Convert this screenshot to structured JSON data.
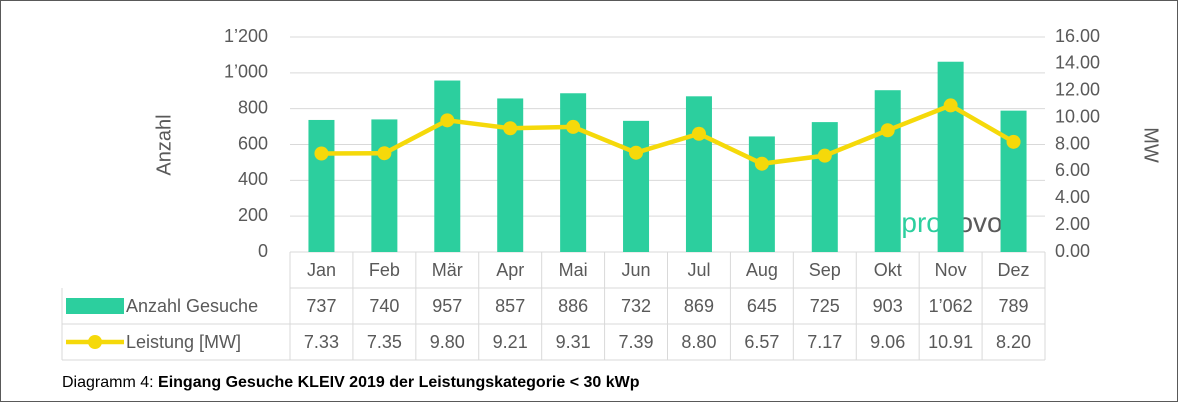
{
  "chart_data": {
    "type": "bar_line_table",
    "categories": [
      "Jan",
      "Feb",
      "Mär",
      "Apr",
      "Mai",
      "Jun",
      "Jul",
      "Aug",
      "Sep",
      "Okt",
      "Nov",
      "Dez"
    ],
    "series": [
      {
        "name": "Anzahl Gesuche",
        "type": "bar",
        "color": "#2ccf9e",
        "values": [
          737,
          740,
          957,
          857,
          886,
          732,
          869,
          645,
          725,
          903,
          1062,
          789
        ],
        "value_labels": [
          "737",
          "740",
          "957",
          "857",
          "886",
          "732",
          "869",
          "645",
          "725",
          "903",
          "1’062",
          "789"
        ]
      },
      {
        "name": "Leistung [MW]",
        "type": "line",
        "axis": "y2",
        "color": "#f5d90a",
        "values": [
          7.33,
          7.35,
          9.8,
          9.21,
          9.31,
          7.39,
          8.8,
          6.57,
          7.17,
          9.06,
          10.91,
          8.2
        ],
        "value_labels": [
          "7.33",
          "7.35",
          "9.80",
          "9.21",
          "9.31",
          "7.39",
          "8.80",
          "6.57",
          "7.17",
          "9.06",
          "10.91",
          "8.20"
        ]
      }
    ],
    "ylabel": "Anzahl",
    "y2label": "MW",
    "ylim": [
      0,
      1200
    ],
    "yticks": [
      0,
      200,
      400,
      600,
      800,
      {
        "value": 1000,
        "label": "1’000"
      },
      {
        "value": 1200,
        "label": "1’200"
      }
    ],
    "y2lim": [
      0,
      16
    ],
    "y2ticks": [
      {
        "value": 0,
        "label": "0.00"
      },
      {
        "value": 2,
        "label": "2.00"
      },
      {
        "value": 4,
        "label": "4.00"
      },
      {
        "value": 6,
        "label": "6.00"
      },
      {
        "value": 8,
        "label": "8.00"
      },
      {
        "value": 10,
        "label": "10.00"
      },
      {
        "value": 12,
        "label": "12.00"
      },
      {
        "value": 14,
        "label": "14.00"
      },
      {
        "value": 16,
        "label": "16.00"
      }
    ],
    "grid": true,
    "logo": [
      "pro",
      "novo"
    ],
    "caption_prefix": "Diagramm 4:",
    "caption": "Eingang Gesuche KLEIV 2019 der Leistungskategorie < 30 kWp"
  }
}
